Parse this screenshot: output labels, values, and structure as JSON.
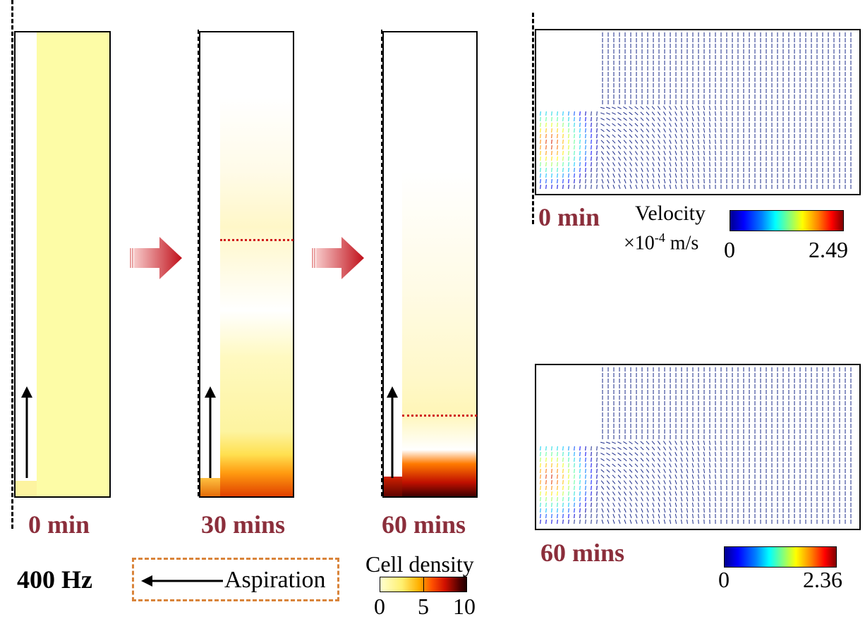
{
  "panels": [
    {
      "time_label": "0 min"
    },
    {
      "time_label": "30 mins"
    },
    {
      "time_label": "60 mins"
    }
  ],
  "frequency_label": "400 Hz",
  "legend": {
    "aspiration_label": "Aspiration"
  },
  "cell_density_colorbar": {
    "title": "Cell density",
    "ticks": [
      "0",
      "5",
      "10"
    ]
  },
  "velocity_panels": [
    {
      "time_label": "0 min",
      "colorbar_min": "0",
      "colorbar_max": "2.49"
    },
    {
      "time_label": "60 mins",
      "colorbar_min": "0",
      "colorbar_max": "2.36"
    }
  ],
  "velocity_legend": {
    "title": "Velocity",
    "unit_prefix": "×10",
    "unit_exponent": "-4",
    "unit_suffix": " m/s"
  },
  "colors": {
    "time_label": "#8b2e3b",
    "arrow_gradient_start": "#f7c9c9",
    "arrow_gradient_end": "#c0101a",
    "legend_box_border": "#d9843a",
    "red_dotted_line": "#d01a1a",
    "vector_field": "#1a2a8a"
  }
}
